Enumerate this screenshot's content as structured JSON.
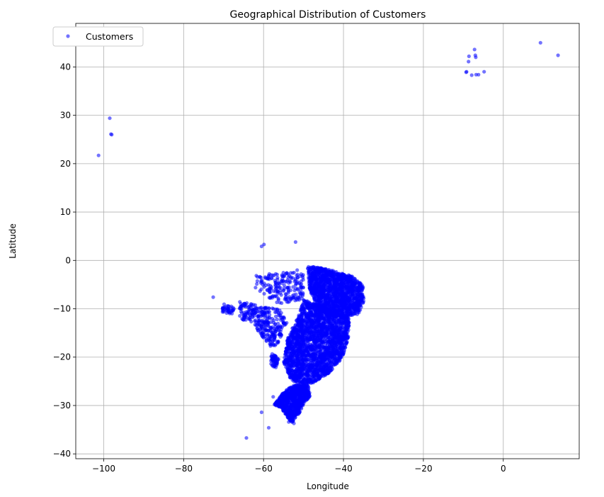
{
  "chart_data": {
    "type": "scatter",
    "title": "Geographical Distribution of Customers",
    "xlabel": "Longitude",
    "ylabel": "Latitude",
    "xlim": [
      -107,
      19
    ],
    "ylim": [
      -41,
      49
    ],
    "xticks": [
      -100,
      -80,
      -60,
      -40,
      -20,
      0
    ],
    "yticks": [
      -40,
      -30,
      -20,
      -10,
      0,
      10,
      20,
      30,
      40
    ],
    "grid": true,
    "legend_position": "upper-left",
    "series": [
      {
        "name": "Customers",
        "color": "#0000ff",
        "marker": "circle",
        "alpha": 0.55,
        "outliers": [
          [
            -98.5,
            29.4
          ],
          [
            -98.2,
            26.1
          ],
          [
            -98.0,
            26.0
          ],
          [
            -101.3,
            21.7
          ],
          [
            -7.2,
            43.6
          ],
          [
            -8.6,
            42.2
          ],
          [
            -7.0,
            42.4
          ],
          [
            -6.9,
            42.0
          ],
          [
            -8.7,
            41.1
          ],
          [
            -9.3,
            38.9
          ],
          [
            -9.2,
            39.0
          ],
          [
            -6.8,
            38.4
          ],
          [
            -6.2,
            38.4
          ],
          [
            -7.9,
            38.3
          ],
          [
            -4.8,
            39.0
          ],
          [
            9.3,
            45.0
          ],
          [
            13.7,
            42.4
          ],
          [
            -60.5,
            2.9
          ],
          [
            -59.9,
            3.3
          ],
          [
            -52.0,
            3.8
          ],
          [
            -72.6,
            -7.6
          ],
          [
            -60.5,
            -31.4
          ],
          [
            -58.7,
            -34.6
          ],
          [
            -64.3,
            -36.7
          ],
          [
            -57.6,
            -28.2
          ],
          [
            -53.7,
            -33.4
          ],
          [
            -52.4,
            -33.7
          ]
        ],
        "regions": [
          {
            "points": [
              [
                -62,
                -3
              ],
              [
                -55,
                -2.5
              ],
              [
                -50,
                -1.5
              ],
              [
                -50,
                -8
              ],
              [
                -56,
                -9
              ],
              [
                -62,
                -6
              ]
            ],
            "count": 200
          },
          {
            "points": [
              [
                -49,
                -1
              ],
              [
                -43,
                -2
              ],
              [
                -38,
                -3.2
              ],
              [
                -35,
                -5.2
              ],
              [
                -34.8,
                -8
              ],
              [
                -36,
                -11
              ],
              [
                -40,
                -12
              ],
              [
                -46,
                -11
              ],
              [
                -48.5,
                -6
              ]
            ],
            "count": 1600
          },
          {
            "points": [
              [
                -50,
                -8
              ],
              [
                -44,
                -10
              ],
              [
                -38.5,
                -12
              ],
              [
                -38.8,
                -16
              ],
              [
                -40.2,
                -20
              ],
              [
                -43,
                -23
              ],
              [
                -48,
                -25.5
              ],
              [
                -53,
                -25
              ],
              [
                -55,
                -21
              ],
              [
                -54,
                -16
              ],
              [
                -51,
                -11
              ]
            ],
            "count": 2400
          },
          {
            "points": [
              [
                -49,
                -25.2
              ],
              [
                -48.3,
                -28
              ],
              [
                -49.8,
                -29.5
              ],
              [
                -51.2,
                -31.8
              ],
              [
                -53,
                -33.6
              ],
              [
                -55.5,
                -30.6
              ],
              [
                -57.3,
                -29.8
              ],
              [
                -55,
                -27.2
              ],
              [
                -53,
                -26
              ]
            ],
            "count": 800
          },
          {
            "points": [
              [
                -66,
                -8.5
              ],
              [
                -60,
                -9.5
              ],
              [
                -56,
                -10.2
              ],
              [
                -54,
                -13
              ],
              [
                -56,
                -17
              ],
              [
                -58,
                -18
              ],
              [
                -63,
                -13
              ],
              [
                -66,
                -12
              ]
            ],
            "count": 320
          },
          {
            "points": [
              [
                -70,
                -9
              ],
              [
                -67,
                -9.6
              ],
              [
                -68,
                -11.2
              ],
              [
                -70.5,
                -10.6
              ]
            ],
            "count": 40
          },
          {
            "points": [
              [
                -58,
                -19
              ],
              [
                -56,
                -20.5
              ],
              [
                -57,
                -22.5
              ],
              [
                -58.2,
                -21.8
              ]
            ],
            "count": 50
          }
        ]
      }
    ]
  }
}
